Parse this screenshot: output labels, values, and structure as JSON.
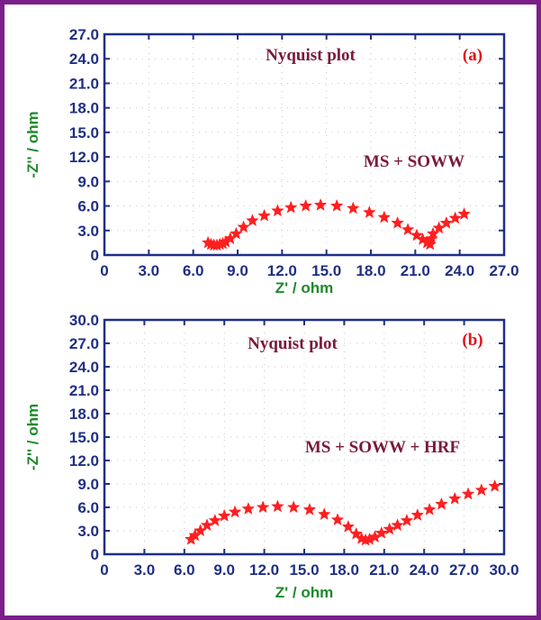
{
  "chart_data": [
    {
      "type": "scatter",
      "title": "Nyquist plot",
      "panel_tag": "(a)",
      "annotation": "MS + SOWW",
      "xlabel": "Z' / ohm",
      "ylabel": "-Z'' / ohm",
      "xlim": [
        0,
        27
      ],
      "ylim": [
        0,
        27
      ],
      "x_ticks": [
        "0",
        "3.0",
        "6.0",
        "9.0",
        "12.0",
        "15.0",
        "18.0",
        "21.0",
        "24.0",
        "27.0"
      ],
      "y_ticks": [
        "0",
        "3.0",
        "6.0",
        "9.0",
        "12.0",
        "15.0",
        "18.0",
        "21.0",
        "24.0",
        "27.0"
      ],
      "grid": true,
      "marker_color": "#ff1f1f",
      "series": [
        {
          "x": [
            7.0,
            7.2,
            7.4,
            7.6,
            7.8,
            8.0,
            8.2,
            8.5,
            8.9,
            9.4,
            10.0,
            10.8,
            11.7,
            12.6,
            13.6,
            14.6,
            15.7,
            16.8,
            17.9,
            18.9,
            19.8,
            20.5,
            21.1,
            21.5,
            21.8,
            22.0,
            22.1,
            22.2,
            22.6,
            23.1,
            23.7,
            24.3
          ],
          "y": [
            1.5,
            1.3,
            1.2,
            1.2,
            1.3,
            1.4,
            1.6,
            2.0,
            2.6,
            3.4,
            4.2,
            4.8,
            5.4,
            5.8,
            6.0,
            6.1,
            6.0,
            5.7,
            5.2,
            4.6,
            3.9,
            3.1,
            2.4,
            1.9,
            1.5,
            1.3,
            2.0,
            2.6,
            3.3,
            3.9,
            4.5,
            5.0
          ]
        }
      ]
    },
    {
      "type": "scatter",
      "title": "Nyquist plot",
      "panel_tag": "(b)",
      "annotation": "MS + SOWW + HRF",
      "xlabel": "Z' / ohm",
      "ylabel": "-Z'' / ohm",
      "xlim": [
        0,
        30
      ],
      "ylim": [
        0,
        30
      ],
      "x_ticks": [
        "0",
        "3.0",
        "6.0",
        "9.0",
        "12.0",
        "15.0",
        "18.0",
        "21.0",
        "24.0",
        "27.0",
        "30.0"
      ],
      "y_ticks": [
        "0",
        "3.0",
        "6.0",
        "9.0",
        "12.0",
        "15.0",
        "18.0",
        "21.0",
        "24.0",
        "27.0",
        "30.0"
      ],
      "grid": true,
      "marker_color": "#ff1f1f",
      "series": [
        {
          "x": [
            6.5,
            6.8,
            7.2,
            7.7,
            8.3,
            9.0,
            9.8,
            10.8,
            11.9,
            13.0,
            14.2,
            15.4,
            16.5,
            17.5,
            18.3,
            18.9,
            19.3,
            19.6,
            19.9,
            20.3,
            20.8,
            21.4,
            22.0,
            22.7,
            23.5,
            24.4,
            25.3,
            26.3,
            27.3,
            28.3,
            29.3
          ],
          "y": [
            1.9,
            2.4,
            3.0,
            3.7,
            4.3,
            4.9,
            5.4,
            5.8,
            6.0,
            6.1,
            6.0,
            5.7,
            5.1,
            4.4,
            3.5,
            2.6,
            2.0,
            1.8,
            1.9,
            2.2,
            2.7,
            3.2,
            3.7,
            4.3,
            5.0,
            5.7,
            6.4,
            7.1,
            7.7,
            8.2,
            8.7
          ]
        }
      ]
    }
  ]
}
